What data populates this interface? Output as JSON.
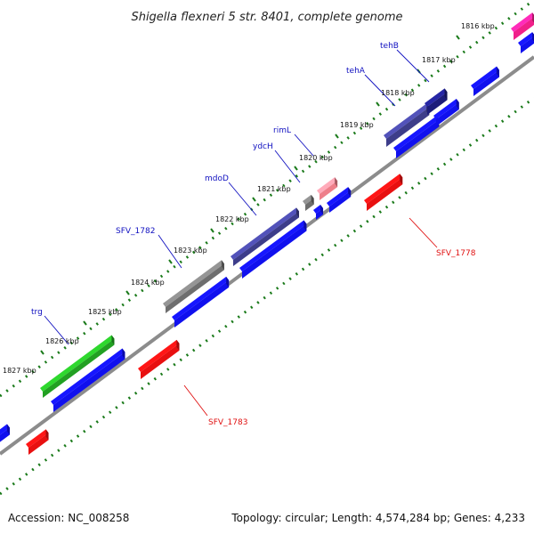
{
  "title": "Shigella flexneri 5 str. 8401, complete genome",
  "footer": {
    "accession": "Accession: NC_008258",
    "summary": "Topology: circular; Length: 4,574,284 bp; Genes: 4,233"
  },
  "ticks": [
    "1816 kbp",
    "1817 kbp",
    "1818 kbp",
    "1819 kbp",
    "1820 kbp",
    "1821 kbp",
    "1822 kbp",
    "1823 kbp",
    "1824 kbp",
    "1825 kbp",
    "1826 kbp",
    "1827 kbp"
  ],
  "labels": {
    "tehB": "tehB",
    "tehA": "tehA",
    "rimL": "rimL",
    "ydcH": "ydcH",
    "mdoD": "mdoD",
    "SFV_1782": "SFV_1782",
    "trg": "trg",
    "SFV_1778": "SFV_1778",
    "SFV_1783": "SFV_1783"
  },
  "colors": {
    "cds": "#1010ee",
    "gene_gray": "#6e6e6e",
    "gene_navy": "#3d3d8a",
    "gene_green": "#22a022",
    "gene_pink": "#ee7f8a",
    "gene_magenta": "#f0208a",
    "reverse": "#e81010",
    "backbone": "#8c8c8c",
    "tick": "#1a7a1a",
    "label_blue": "#1010c0",
    "label_red": "#e01010"
  }
}
